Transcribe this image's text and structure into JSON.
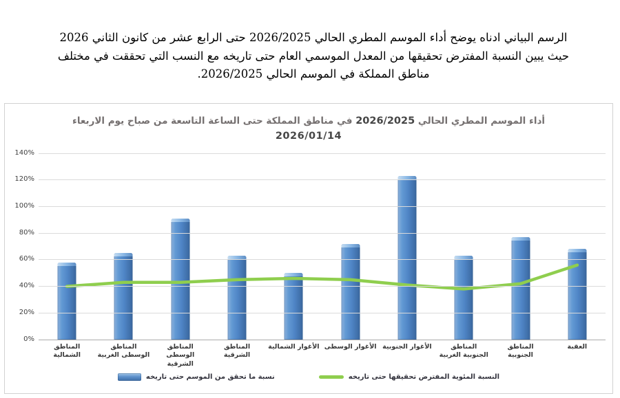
{
  "intro": {
    "lines": [
      "الرسم البياني ادناه يوضح أداء الموسم المطري الحالي 2026/2025 حتى الرابع عشر من كانون الثاني 2026",
      "حيث يبين النسبة المفترض تحقيقها من المعدل الموسمي العام حتى تاريخه مع النسب التي تحققت في مختلف",
      "مناطق المملكة في الموسم الحالي 2026/2025."
    ]
  },
  "chart": {
    "title_pre": "أداء الموسم المطري الحالي",
    "title_season": "2026/2025",
    "title_post": "في مناطق المملكة حتى الساعة التاسعة من صباح يوم الاربعاء",
    "title_date": "2026/01/14",
    "legend_bar": "نسبة ما تحقق من الموسم حتى تاريخه",
    "legend_line": "النسبة المئوية المفترض تحقيقها  حتى تاريخه",
    "colors": {
      "bar_main": "#4f85c6",
      "bar_light": "#a5c8e8",
      "bar_dark": "#3a679e",
      "line_green": "#8fce4e",
      "grid": "#dadada",
      "axis": "#ababab",
      "title_gray": "#757070"
    }
  },
  "chart_data": {
    "type": "bar",
    "title": "أداء الموسم المطري الحالي 2026/2025 في مناطق المملكة حتى الساعة التاسعة من صباح يوم الاربعاء 2026/01/14",
    "categories": [
      "المناطق الشمالية",
      "المناطق الوسطى الغربية",
      "المناطق الوسطى الشرقية",
      "المناطق الشرقية",
      "الأغوار الشمالية",
      "الأغوار الوسطى",
      "الأغوار الجنوبية",
      "المناطق الجنوبية الغربية",
      "المناطق الجنوبية",
      "العقبة"
    ],
    "series": [
      {
        "name": "نسبة ما تحقق من الموسم حتى تاريخه",
        "type": "bar",
        "values": [
          58,
          65,
          91,
          63,
          50,
          72,
          123,
          63,
          77,
          68
        ]
      },
      {
        "name": "النسبة المئوية المفترض تحقيقها حتى تاريخه",
        "type": "line",
        "values": [
          40,
          43,
          43,
          45,
          46,
          45,
          41,
          38,
          42,
          56
        ]
      }
    ],
    "xlabel": "",
    "ylabel": "",
    "ylim": [
      0,
      140
    ],
    "ytick_step": 20,
    "ytick_labels": [
      "0%",
      "20%",
      "40%",
      "60%",
      "80%",
      "100%",
      "120%",
      "140%"
    ],
    "grid": true,
    "legend_position": "bottom"
  }
}
